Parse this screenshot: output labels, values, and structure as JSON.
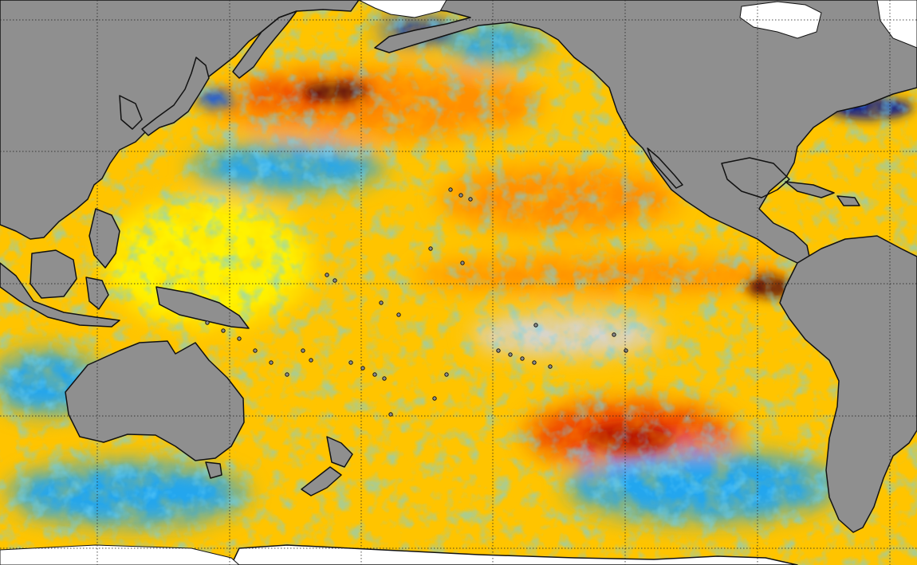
{
  "map": {
    "type": "sea-surface-temperature-anomaly",
    "region": "Pacific Ocean",
    "colors": {
      "land": "#8f8f8f",
      "ice": "#ffffff",
      "coastline": "#111111",
      "gridline": "#222222",
      "neutral": "#d6d6d6",
      "anomaly_scale": [
        "#0b1f8f",
        "#1f5fd8",
        "#22a6ef",
        "#d6d6d6",
        "#fff200",
        "#ffc400",
        "#ff8f00",
        "#ef4a00",
        "#b81800",
        "#5a0f0f"
      ]
    },
    "gridlines": {
      "style": "dotted",
      "visible": true
    }
  }
}
